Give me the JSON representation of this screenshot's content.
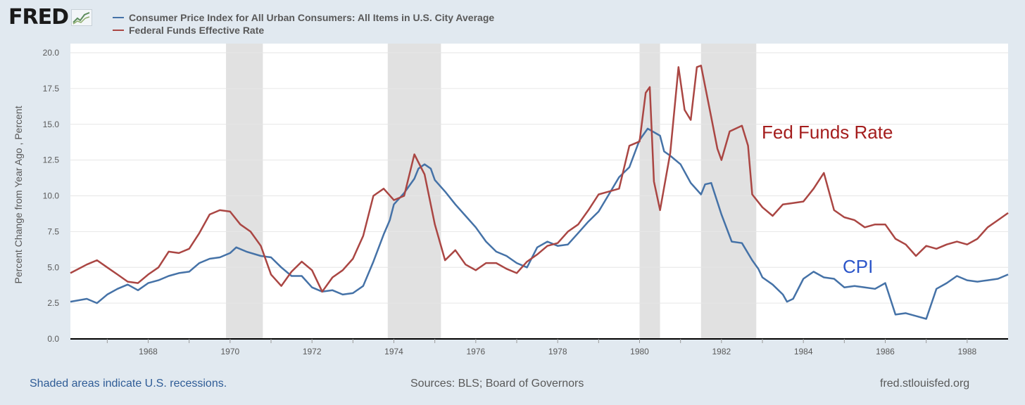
{
  "logo": {
    "text": "FRED",
    "icon": "line-graph-icon"
  },
  "legend": [
    {
      "label": "Consumer Price Index for All Urban Consumers: All Items in U.S. City Average",
      "color": "#4572a7"
    },
    {
      "label": "Federal Funds Effective Rate",
      "color": "#aa4643"
    }
  ],
  "annotations": {
    "fed_funds": "Fed Funds Rate",
    "cpi": "CPI",
    "fed_funds_color": "#a41d1d",
    "cpi_color": "#2b55c9"
  },
  "footer": {
    "recession_note": "Shaded areas indicate U.S. recessions.",
    "sources": "Sources: BLS; Board of Governors",
    "site": "fred.stlouisfed.org"
  },
  "chart_data": {
    "type": "line",
    "ylabel": "Percent Change from Year Ago , Percent",
    "xlim": [
      1966.1,
      1989.0
    ],
    "ylim": [
      0,
      20
    ],
    "x_ticks": [
      "1968",
      "1970",
      "1972",
      "1974",
      "1976",
      "1978",
      "1980",
      "1982",
      "1984",
      "1986",
      "1988"
    ],
    "y_ticks": [
      "0.0",
      "2.5",
      "5.0",
      "7.5",
      "10.0",
      "12.5",
      "15.0",
      "17.5",
      "20.0"
    ],
    "grid": "horizontal",
    "recessions": [
      [
        1969.9,
        1970.8
      ],
      [
        1973.85,
        1975.15
      ],
      [
        1980.0,
        1980.5
      ],
      [
        1981.5,
        1982.85
      ]
    ],
    "series": [
      {
        "name": "Consumer Price Index for All Urban Consumers: All Items in U.S. City Average",
        "color": "#4572a7",
        "points": [
          [
            1966.1,
            2.6
          ],
          [
            1966.5,
            2.8
          ],
          [
            1966.75,
            2.5
          ],
          [
            1967.0,
            3.1
          ],
          [
            1967.25,
            3.5
          ],
          [
            1967.5,
            3.8
          ],
          [
            1967.75,
            3.4
          ],
          [
            1968.0,
            3.9
          ],
          [
            1968.25,
            4.1
          ],
          [
            1968.5,
            4.4
          ],
          [
            1968.75,
            4.6
          ],
          [
            1969.0,
            4.7
          ],
          [
            1969.25,
            5.3
          ],
          [
            1969.5,
            5.6
          ],
          [
            1969.75,
            5.7
          ],
          [
            1970.0,
            6.0
          ],
          [
            1970.15,
            6.4
          ],
          [
            1970.4,
            6.1
          ],
          [
            1970.75,
            5.8
          ],
          [
            1971.0,
            5.7
          ],
          [
            1971.25,
            5.0
          ],
          [
            1971.5,
            4.4
          ],
          [
            1971.75,
            4.4
          ],
          [
            1972.0,
            3.6
          ],
          [
            1972.25,
            3.3
          ],
          [
            1972.5,
            3.4
          ],
          [
            1972.75,
            3.1
          ],
          [
            1973.0,
            3.2
          ],
          [
            1973.25,
            3.7
          ],
          [
            1973.5,
            5.4
          ],
          [
            1973.75,
            7.3
          ],
          [
            1973.9,
            8.3
          ],
          [
            1974.0,
            9.4
          ],
          [
            1974.25,
            10.2
          ],
          [
            1974.5,
            11.2
          ],
          [
            1974.6,
            11.9
          ],
          [
            1974.75,
            12.2
          ],
          [
            1974.9,
            11.9
          ],
          [
            1975.0,
            11.1
          ],
          [
            1975.25,
            10.3
          ],
          [
            1975.5,
            9.4
          ],
          [
            1975.75,
            8.6
          ],
          [
            1976.0,
            7.8
          ],
          [
            1976.25,
            6.8
          ],
          [
            1976.5,
            6.1
          ],
          [
            1976.75,
            5.8
          ],
          [
            1977.0,
            5.3
          ],
          [
            1977.25,
            5.0
          ],
          [
            1977.5,
            6.4
          ],
          [
            1977.75,
            6.8
          ],
          [
            1978.0,
            6.5
          ],
          [
            1978.25,
            6.6
          ],
          [
            1978.5,
            7.4
          ],
          [
            1978.75,
            8.2
          ],
          [
            1979.0,
            8.9
          ],
          [
            1979.25,
            10.1
          ],
          [
            1979.5,
            11.3
          ],
          [
            1979.75,
            12.0
          ],
          [
            1980.0,
            13.9
          ],
          [
            1980.2,
            14.7
          ],
          [
            1980.5,
            14.2
          ],
          [
            1980.6,
            13.1
          ],
          [
            1980.75,
            12.8
          ],
          [
            1981.0,
            12.2
          ],
          [
            1981.25,
            10.9
          ],
          [
            1981.5,
            10.1
          ],
          [
            1981.6,
            10.8
          ],
          [
            1981.75,
            10.9
          ],
          [
            1982.0,
            8.7
          ],
          [
            1982.25,
            6.8
          ],
          [
            1982.5,
            6.7
          ],
          [
            1982.75,
            5.5
          ],
          [
            1982.9,
            4.9
          ],
          [
            1983.0,
            4.3
          ],
          [
            1983.25,
            3.8
          ],
          [
            1983.5,
            3.1
          ],
          [
            1983.6,
            2.6
          ],
          [
            1983.75,
            2.8
          ],
          [
            1984.0,
            4.2
          ],
          [
            1984.25,
            4.7
          ],
          [
            1984.5,
            4.3
          ],
          [
            1984.75,
            4.2
          ],
          [
            1985.0,
            3.6
          ],
          [
            1985.25,
            3.7
          ],
          [
            1985.5,
            3.6
          ],
          [
            1985.75,
            3.5
          ],
          [
            1986.0,
            3.9
          ],
          [
            1986.25,
            1.7
          ],
          [
            1986.5,
            1.8
          ],
          [
            1986.75,
            1.6
          ],
          [
            1987.0,
            1.4
          ],
          [
            1987.25,
            3.5
          ],
          [
            1987.5,
            3.9
          ],
          [
            1987.75,
            4.4
          ],
          [
            1988.0,
            4.1
          ],
          [
            1988.25,
            4.0
          ],
          [
            1988.5,
            4.1
          ],
          [
            1988.75,
            4.2
          ],
          [
            1989.0,
            4.5
          ]
        ]
      },
      {
        "name": "Federal Funds Effective Rate",
        "color": "#aa4643",
        "points": [
          [
            1966.1,
            4.6
          ],
          [
            1966.5,
            5.2
          ],
          [
            1966.75,
            5.5
          ],
          [
            1967.0,
            5.0
          ],
          [
            1967.25,
            4.5
          ],
          [
            1967.5,
            4.0
          ],
          [
            1967.75,
            3.9
          ],
          [
            1968.0,
            4.5
          ],
          [
            1968.25,
            5.0
          ],
          [
            1968.5,
            6.1
          ],
          [
            1968.75,
            6.0
          ],
          [
            1969.0,
            6.3
          ],
          [
            1969.25,
            7.4
          ],
          [
            1969.5,
            8.7
          ],
          [
            1969.75,
            9.0
          ],
          [
            1970.0,
            8.9
          ],
          [
            1970.25,
            8.0
          ],
          [
            1970.5,
            7.5
          ],
          [
            1970.75,
            6.5
          ],
          [
            1971.0,
            4.5
          ],
          [
            1971.25,
            3.7
          ],
          [
            1971.5,
            4.7
          ],
          [
            1971.75,
            5.4
          ],
          [
            1972.0,
            4.8
          ],
          [
            1972.25,
            3.3
          ],
          [
            1972.5,
            4.3
          ],
          [
            1972.75,
            4.8
          ],
          [
            1973.0,
            5.6
          ],
          [
            1973.25,
            7.2
          ],
          [
            1973.5,
            10.0
          ],
          [
            1973.75,
            10.5
          ],
          [
            1974.0,
            9.7
          ],
          [
            1974.25,
            10.0
          ],
          [
            1974.5,
            12.9
          ],
          [
            1974.75,
            11.5
          ],
          [
            1975.0,
            8.0
          ],
          [
            1975.25,
            5.5
          ],
          [
            1975.5,
            6.2
          ],
          [
            1975.75,
            5.2
          ],
          [
            1976.0,
            4.8
          ],
          [
            1976.25,
            5.3
          ],
          [
            1976.5,
            5.3
          ],
          [
            1976.75,
            4.9
          ],
          [
            1977.0,
            4.6
          ],
          [
            1977.25,
            5.4
          ],
          [
            1977.5,
            5.9
          ],
          [
            1977.75,
            6.5
          ],
          [
            1978.0,
            6.7
          ],
          [
            1978.25,
            7.5
          ],
          [
            1978.5,
            8.0
          ],
          [
            1978.75,
            9.0
          ],
          [
            1979.0,
            10.1
          ],
          [
            1979.25,
            10.3
          ],
          [
            1979.5,
            10.5
          ],
          [
            1979.75,
            13.5
          ],
          [
            1980.0,
            13.8
          ],
          [
            1980.15,
            17.2
          ],
          [
            1980.25,
            17.6
          ],
          [
            1980.35,
            11.0
          ],
          [
            1980.5,
            9.0
          ],
          [
            1980.75,
            13.0
          ],
          [
            1980.95,
            19.0
          ],
          [
            1981.1,
            16.0
          ],
          [
            1981.25,
            15.3
          ],
          [
            1981.4,
            19.0
          ],
          [
            1981.5,
            19.1
          ],
          [
            1981.75,
            15.5
          ],
          [
            1981.9,
            13.3
          ],
          [
            1982.0,
            12.5
          ],
          [
            1982.2,
            14.5
          ],
          [
            1982.5,
            14.9
          ],
          [
            1982.65,
            13.5
          ],
          [
            1982.75,
            10.1
          ],
          [
            1983.0,
            9.2
          ],
          [
            1983.25,
            8.6
          ],
          [
            1983.5,
            9.4
          ],
          [
            1983.75,
            9.5
          ],
          [
            1984.0,
            9.6
          ],
          [
            1984.25,
            10.5
          ],
          [
            1984.5,
            11.6
          ],
          [
            1984.75,
            9.0
          ],
          [
            1985.0,
            8.5
          ],
          [
            1985.25,
            8.3
          ],
          [
            1985.5,
            7.8
          ],
          [
            1985.75,
            8.0
          ],
          [
            1986.0,
            8.0
          ],
          [
            1986.25,
            7.0
          ],
          [
            1986.5,
            6.6
          ],
          [
            1986.75,
            5.8
          ],
          [
            1987.0,
            6.5
          ],
          [
            1987.25,
            6.3
          ],
          [
            1987.5,
            6.6
          ],
          [
            1987.75,
            6.8
          ],
          [
            1988.0,
            6.6
          ],
          [
            1988.25,
            7.0
          ],
          [
            1988.5,
            7.8
          ],
          [
            1988.75,
            8.3
          ],
          [
            1989.0,
            8.8
          ]
        ]
      }
    ]
  }
}
